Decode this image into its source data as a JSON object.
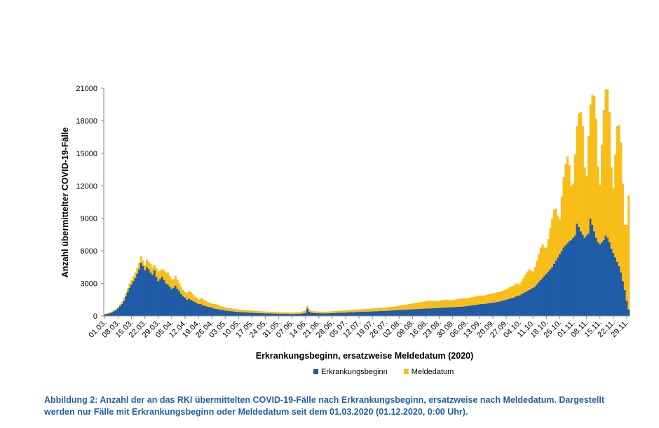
{
  "chart_data": {
    "type": "stacked_bar",
    "y_label": "Anzahl übermittelter COVID-19-Fälle",
    "x_label": "Erkrankungsbeginn, ersatzweise Meldedatum (2020)",
    "caption": "Abbildung 2: Anzahl der an das RKI übermittelten COVID-19-Fälle nach Erkrankungsbeginn, ersatzweise nach Meldedatum. Dargestellt werden nur Fälle mit Erkrankungsbeginn oder Meldedatum seit dem 01.03.2020 (01.12.2020, 0:00 Uhr).",
    "ylim": [
      0,
      21000
    ],
    "yticks": [
      0,
      3000,
      6000,
      9000,
      12000,
      15000,
      18000,
      21000
    ],
    "legend": "bottom",
    "categories": [
      "01.03.",
      null,
      null,
      null,
      null,
      null,
      null,
      "08.03.",
      null,
      null,
      null,
      null,
      null,
      null,
      "15.03.",
      null,
      null,
      null,
      null,
      null,
      null,
      "22.03.",
      null,
      null,
      null,
      null,
      null,
      null,
      "29.03.",
      null,
      null,
      null,
      null,
      null,
      null,
      "05.04.",
      null,
      null,
      null,
      null,
      null,
      null,
      "12.04.",
      null,
      null,
      null,
      null,
      null,
      null,
      "19.04.",
      null,
      null,
      null,
      null,
      null,
      null,
      "26.04.",
      null,
      null,
      null,
      null,
      null,
      null,
      "03.05.",
      null,
      null,
      null,
      null,
      null,
      null,
      "10.05.",
      null,
      null,
      null,
      null,
      null,
      null,
      "17.05.",
      null,
      null,
      null,
      null,
      null,
      null,
      "24.05.",
      null,
      null,
      null,
      null,
      null,
      null,
      "31.05.",
      null,
      null,
      null,
      null,
      null,
      null,
      "07.06.",
      null,
      null,
      null,
      null,
      null,
      null,
      "14.06.",
      null,
      null,
      null,
      null,
      null,
      null,
      "21.06.",
      null,
      null,
      null,
      null,
      null,
      null,
      "28.06.",
      null,
      null,
      null,
      null,
      null,
      null,
      "05.07.",
      null,
      null,
      null,
      null,
      null,
      null,
      "12.07.",
      null,
      null,
      null,
      null,
      null,
      null,
      "19.07.",
      null,
      null,
      null,
      null,
      null,
      null,
      "26.07.",
      null,
      null,
      null,
      null,
      null,
      null,
      "02.08.",
      null,
      null,
      null,
      null,
      null,
      null,
      "09.08.",
      null,
      null,
      null,
      null,
      null,
      null,
      "16.08.",
      null,
      null,
      null,
      null,
      null,
      null,
      "23.08.",
      null,
      null,
      null,
      null,
      null,
      null,
      "30.08.",
      null,
      null,
      null,
      null,
      null,
      null,
      "06.09.",
      null,
      null,
      null,
      null,
      null,
      null,
      "13.09.",
      null,
      null,
      null,
      null,
      null,
      null,
      "20.09.",
      null,
      null,
      null,
      null,
      null,
      null,
      "27.09.",
      null,
      null,
      null,
      null,
      null,
      null,
      "04.10.",
      null,
      null,
      null,
      null,
      null,
      null,
      "11.10.",
      null,
      null,
      null,
      null,
      null,
      null,
      "18.10.",
      null,
      null,
      null,
      null,
      null,
      null,
      "25.10.",
      null,
      null,
      null,
      null,
      null,
      null,
      "01.11.",
      null,
      null,
      null,
      null,
      null,
      null,
      "08.11.",
      null,
      null,
      null,
      null,
      null,
      null,
      "15.11.",
      null,
      null,
      null,
      null,
      null,
      null,
      "22.11.",
      null,
      null,
      null,
      null,
      null,
      null,
      "29.11.",
      null
    ],
    "series": [
      {
        "name": "Erkrankungsbeginn",
        "color": "#1f5ba6",
        "values": [
          150,
          180,
          220,
          280,
          350,
          450,
          550,
          700,
          900,
          1100,
          1400,
          1800,
          2200,
          2600,
          2900,
          3200,
          3500,
          3900,
          4300,
          4900,
          4600,
          4200,
          4500,
          4300,
          4000,
          3800,
          4200,
          3600,
          3200,
          3400,
          3600,
          3300,
          3000,
          2900,
          2700,
          2500,
          2600,
          2800,
          2500,
          2300,
          2000,
          1800,
          1700,
          1500,
          1600,
          1500,
          1400,
          1300,
          1200,
          1100,
          1100,
          1000,
          950,
          900,
          850,
          800,
          780,
          700,
          650,
          620,
          600,
          560,
          540,
          500,
          480,
          460,
          440,
          430,
          400,
          380,
          360,
          350,
          340,
          330,
          320,
          310,
          300,
          290,
          280,
          280,
          270,
          260,
          250,
          250,
          240,
          240,
          230,
          230,
          220,
          220,
          210,
          210,
          200,
          200,
          190,
          190,
          190,
          180,
          180,
          180,
          190,
          200,
          210,
          220,
          250,
          280,
          700,
          400,
          300,
          280,
          260,
          260,
          250,
          250,
          240,
          240,
          240,
          250,
          260,
          270,
          280,
          280,
          290,
          300,
          300,
          310,
          310,
          320,
          330,
          340,
          340,
          350,
          360,
          370,
          380,
          380,
          390,
          400,
          400,
          410,
          420,
          420,
          430,
          440,
          450,
          460,
          460,
          470,
          480,
          490,
          500,
          510,
          520,
          530,
          540,
          550,
          560,
          570,
          580,
          590,
          600,
          610,
          620,
          630,
          640,
          650,
          660,
          670,
          680,
          690,
          700,
          700,
          710,
          720,
          730,
          740,
          750,
          760,
          770,
          780,
          790,
          800,
          810,
          820,
          830,
          840,
          850,
          860,
          880,
          900,
          920,
          950,
          980,
          1000,
          1020,
          1050,
          1080,
          1100,
          1100,
          1120,
          1150,
          1180,
          1200,
          1220,
          1250,
          1280,
          1300,
          1350,
          1400,
          1450,
          1500,
          1550,
          1600,
          1650,
          1700,
          1800,
          1850,
          1900,
          2000,
          2100,
          2200,
          2300,
          2400,
          2500,
          2600,
          2700,
          2900,
          3100,
          3300,
          3500,
          3700,
          3900,
          4100,
          4300,
          4500,
          4800,
          5100,
          5400,
          5700,
          6000,
          6300,
          6500,
          6700,
          6900,
          7000,
          7200,
          7400,
          8500,
          8200,
          7800,
          7500,
          7200,
          7400,
          7600,
          9000,
          8400,
          7800,
          7200,
          6800,
          6600,
          6800,
          7000,
          7400,
          7200,
          6800,
          6200,
          5800,
          5400,
          5000,
          4600,
          4000,
          3200,
          2400,
          1400,
          600
        ]
      },
      {
        "name": "Meldedatum",
        "color": "#f9bd19",
        "values": [
          50,
          50,
          60,
          70,
          80,
          100,
          100,
          120,
          150,
          200,
          250,
          300,
          350,
          400,
          400,
          450,
          500,
          550,
          600,
          600,
          500,
          500,
          700,
          700,
          800,
          700,
          500,
          800,
          900,
          800,
          700,
          900,
          1000,
          1100,
          1000,
          900,
          800,
          900,
          800,
          700,
          700,
          600,
          500,
          600,
          700,
          700,
          600,
          500,
          500,
          400,
          500,
          600,
          500,
          500,
          400,
          400,
          350,
          400,
          450,
          400,
          350,
          300,
          300,
          280,
          280,
          260,
          260,
          250,
          240,
          240,
          230,
          230,
          220,
          220,
          210,
          210,
          200,
          200,
          190,
          190,
          180,
          180,
          170,
          170,
          170,
          160,
          160,
          160,
          150,
          150,
          150,
          150,
          140,
          140,
          140,
          130,
          130,
          130,
          120,
          120,
          130,
          140,
          140,
          150,
          200,
          250,
          200,
          180,
          170,
          160,
          160,
          150,
          150,
          150,
          150,
          150,
          150,
          160,
          160,
          170,
          170,
          170,
          180,
          180,
          190,
          190,
          200,
          200,
          210,
          210,
          220,
          220,
          230,
          230,
          240,
          240,
          250,
          250,
          260,
          260,
          270,
          270,
          280,
          280,
          290,
          300,
          300,
          310,
          320,
          330,
          340,
          350,
          360,
          380,
          400,
          420,
          440,
          460,
          480,
          500,
          520,
          540,
          560,
          580,
          600,
          620,
          640,
          660,
          680,
          700,
          700,
          680,
          660,
          640,
          640,
          660,
          680,
          700,
          720,
          700,
          680,
          660,
          660,
          680,
          700,
          720,
          740,
          760,
          740,
          720,
          700,
          720,
          740,
          760,
          780,
          800,
          780,
          760,
          760,
          780,
          800,
          820,
          840,
          860,
          880,
          900,
          900,
          880,
          900,
          940,
          980,
          1000,
          1040,
          1080,
          1100,
          1200,
          1100,
          1000,
          1200,
          1400,
          1600,
          1800,
          1900,
          1700,
          1500,
          1800,
          2200,
          2600,
          3000,
          3100,
          2600,
          2400,
          3000,
          3800,
          4500,
          5000,
          4800,
          3800,
          3200,
          5000,
          6500,
          7500,
          8000,
          7000,
          5000,
          5000,
          7500,
          9000,
          10500,
          11000,
          10000,
          6500,
          5500,
          9000,
          10500,
          12000,
          12500,
          11000,
          7000,
          5500,
          9000,
          12000,
          13500,
          13700,
          12000,
          7500,
          6000,
          9500,
          12500,
          13000,
          12000,
          9000,
          6000,
          7000,
          10500
        ]
      }
    ]
  }
}
